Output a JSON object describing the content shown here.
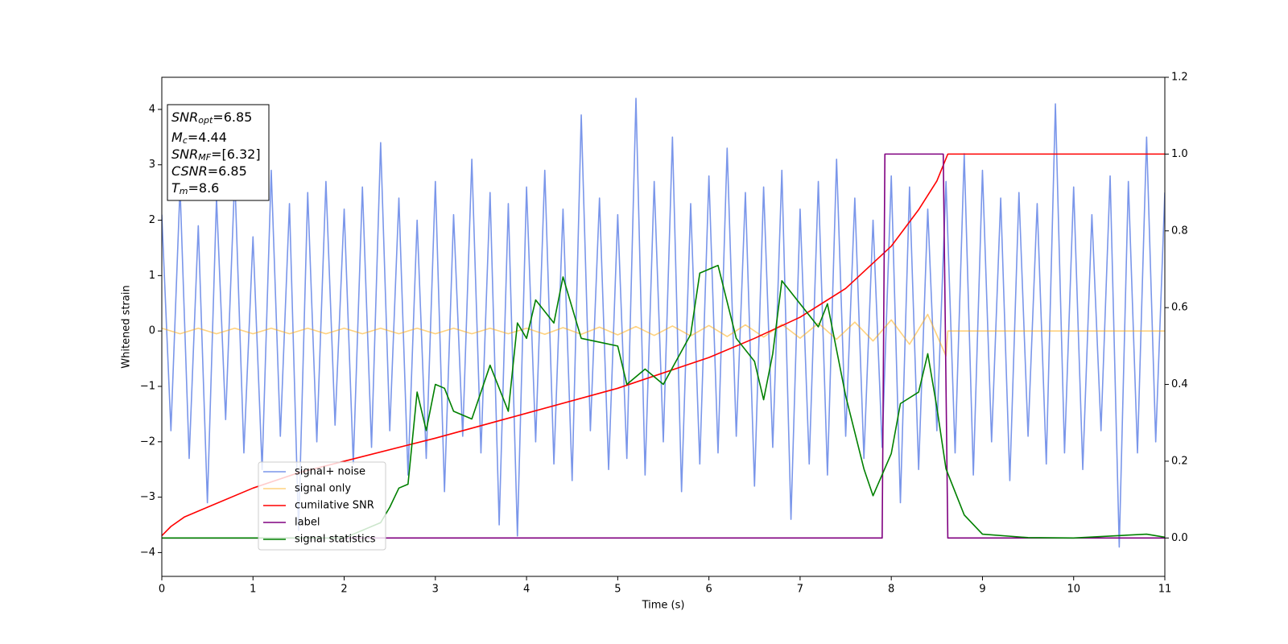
{
  "chart_data": {
    "type": "line",
    "xlabel": "Time (s)",
    "ylabel": "Whitened strain",
    "xlim": [
      0,
      11
    ],
    "ylim": [
      -4.43,
      4.58
    ],
    "y2lim": [
      -0.1,
      1.2
    ],
    "xticks": [
      0,
      1,
      2,
      3,
      4,
      5,
      6,
      7,
      8,
      9,
      10,
      11
    ],
    "yticks": [
      -4,
      -3,
      -2,
      -1,
      0,
      1,
      2,
      3,
      4
    ],
    "y2ticks": [
      {
        "value": 0,
        "label": "0.0"
      },
      0.2,
      0.4,
      0.6,
      0.8,
      {
        "value": 1,
        "label": "1.0"
      },
      1.2
    ],
    "annotation": [
      {
        "base": "SNR",
        "sub": "opt",
        "text": "=6.85"
      },
      {
        "base": "M",
        "sub": "c",
        "text": "=4.44"
      },
      {
        "base": "SNR",
        "sub": "MF",
        "text": "=[6.32]"
      },
      {
        "base": "CSNR",
        "text": "=6.85"
      },
      {
        "base": "T",
        "sub": "m",
        "text": "=8.6"
      }
    ],
    "series": [
      {
        "name": "signal+ noise",
        "color": "#4169e1",
        "alpha": 0.7,
        "x": [
          0,
          0.1,
          0.2,
          0.3,
          0.4,
          0.5,
          0.6,
          0.7,
          0.8,
          0.9,
          1,
          1.1,
          1.2,
          1.3,
          1.4,
          1.5,
          1.6,
          1.7,
          1.8,
          1.9,
          2,
          2.1,
          2.2,
          2.3,
          2.4,
          2.5,
          2.6,
          2.7,
          2.8,
          2.9,
          3,
          3.1,
          3.2,
          3.3,
          3.4,
          3.5,
          3.6,
          3.7,
          3.8,
          3.9,
          4,
          4.1,
          4.2,
          4.3,
          4.4,
          4.5,
          4.6,
          4.7,
          4.8,
          4.9,
          5,
          5.1,
          5.2,
          5.3,
          5.4,
          5.5,
          5.6,
          5.7,
          5.8,
          5.9,
          6,
          6.1,
          6.2,
          6.3,
          6.4,
          6.5,
          6.6,
          6.7,
          6.8,
          6.9,
          7,
          7.1,
          7.2,
          7.3,
          7.4,
          7.5,
          7.6,
          7.7,
          7.8,
          7.9,
          8,
          8.1,
          8.2,
          8.3,
          8.4,
          8.5,
          8.6,
          8.7,
          8.8,
          8.9,
          9,
          9.1,
          9.2,
          9.3,
          9.4,
          9.5,
          9.6,
          9.7,
          9.8,
          9.9,
          10,
          10.1,
          10.2,
          10.3,
          10.4,
          10.5,
          10.6,
          10.7,
          10.8,
          10.9,
          11
        ],
        "values": [
          2.1,
          -1.8,
          2.6,
          -2.3,
          1.9,
          -3.1,
          2.4,
          -1.6,
          2.8,
          -2.2,
          1.7,
          -2.5,
          2.9,
          -1.9,
          2.3,
          -3.6,
          2.5,
          -2.0,
          2.7,
          -1.7,
          2.2,
          -2.4,
          2.6,
          -2.1,
          3.4,
          -1.8,
          2.4,
          -2.6,
          2.0,
          -2.3,
          2.7,
          -2.9,
          2.1,
          -1.9,
          3.1,
          -2.2,
          2.5,
          -3.5,
          2.3,
          -3.7,
          2.6,
          -2.0,
          2.9,
          -2.4,
          2.2,
          -2.7,
          3.9,
          -1.8,
          2.4,
          -2.5,
          2.1,
          -2.3,
          4.2,
          -2.6,
          2.7,
          -2.0,
          3.5,
          -2.9,
          2.3,
          -2.4,
          2.8,
          -2.2,
          3.3,
          -1.9,
          2.5,
          -2.8,
          2.6,
          -2.1,
          2.9,
          -3.4,
          2.2,
          -2.4,
          2.7,
          -2.6,
          3.1,
          -1.9,
          2.4,
          -2.3,
          2.0,
          -2.1,
          2.8,
          -3.1,
          2.6,
          -2.5,
          2.2,
          -1.8,
          2.7,
          -2.2,
          3.2,
          -2.6,
          2.9,
          -2.0,
          2.4,
          -2.7,
          2.5,
          -1.9,
          2.3,
          -2.4,
          4.1,
          -2.2,
          2.6,
          -2.5,
          2.1,
          -1.8,
          2.8,
          -3.9,
          2.7,
          -2.2,
          3.5,
          -2.0,
          2.5
        ]
      },
      {
        "name": "signal only",
        "color": "#ffa500",
        "alpha": 0.5,
        "x": [
          0,
          0.2,
          0.4,
          0.6,
          0.8,
          1,
          1.2,
          1.4,
          1.6,
          1.8,
          2,
          2.2,
          2.4,
          2.6,
          2.8,
          3,
          3.2,
          3.4,
          3.6,
          3.8,
          4,
          4.2,
          4.4,
          4.6,
          4.8,
          5,
          5.2,
          5.4,
          5.6,
          5.8,
          6,
          6.2,
          6.4,
          6.6,
          6.8,
          7,
          7.2,
          7.4,
          7.6,
          7.8,
          8,
          8.2,
          8.4,
          8.6,
          8.62,
          11
        ],
        "values": [
          0.05,
          -0.05,
          0.05,
          -0.05,
          0.05,
          -0.05,
          0.05,
          -0.05,
          0.05,
          -0.05,
          0.05,
          -0.05,
          0.05,
          -0.05,
          0.05,
          -0.05,
          0.05,
          -0.05,
          0.05,
          -0.05,
          0.05,
          -0.06,
          0.06,
          -0.06,
          0.07,
          -0.07,
          0.08,
          -0.08,
          0.09,
          -0.09,
          0.1,
          -0.1,
          0.11,
          -0.11,
          0.12,
          -0.13,
          0.14,
          -0.15,
          0.16,
          -0.18,
          0.2,
          -0.24,
          0.3,
          -0.45,
          0,
          0
        ]
      },
      {
        "name": "cumilative SNR",
        "color": "#ff0000",
        "axis": "y2",
        "x": [
          0,
          0.1,
          0.25,
          0.5,
          1,
          1.5,
          2,
          3,
          4,
          5,
          6,
          6.5,
          7,
          7.5,
          8,
          8.3,
          8.5,
          8.62,
          11
        ],
        "values": [
          0.006,
          0.03,
          0.055,
          0.08,
          0.13,
          0.17,
          0.2,
          0.26,
          0.325,
          0.39,
          0.47,
          0.52,
          0.575,
          0.65,
          0.76,
          0.855,
          0.93,
          1.0,
          1.0
        ]
      },
      {
        "name": "label",
        "color": "#800080",
        "axis": "y2",
        "x": [
          0,
          7.9,
          7.93,
          8.57,
          8.62,
          11
        ],
        "values": [
          0,
          0,
          1,
          1,
          0,
          0
        ]
      },
      {
        "name": "signal statistics",
        "color": "#008000",
        "axis": "y2",
        "x": [
          0,
          2,
          2.4,
          2.5,
          2.6,
          2.7,
          2.8,
          2.9,
          3,
          3.1,
          3.2,
          3.4,
          3.6,
          3.8,
          3.9,
          4,
          4.1,
          4.3,
          4.4,
          4.6,
          4.8,
          5,
          5.1,
          5.3,
          5.5,
          5.8,
          5.9,
          6.1,
          6.3,
          6.5,
          6.6,
          6.7,
          6.8,
          7,
          7.2,
          7.3,
          7.5,
          7.7,
          7.8,
          8,
          8.1,
          8.3,
          8.4,
          8.5,
          8.6,
          8.8,
          9,
          9.5,
          10,
          10.8,
          11
        ],
        "values": [
          0,
          0,
          0.04,
          0.08,
          0.13,
          0.14,
          0.38,
          0.28,
          0.4,
          0.39,
          0.33,
          0.31,
          0.45,
          0.33,
          0.56,
          0.52,
          0.62,
          0.56,
          0.68,
          0.52,
          0.51,
          0.5,
          0.4,
          0.44,
          0.4,
          0.53,
          0.69,
          0.71,
          0.52,
          0.46,
          0.36,
          0.48,
          0.67,
          0.61,
          0.55,
          0.61,
          0.37,
          0.18,
          0.11,
          0.22,
          0.35,
          0.38,
          0.48,
          0.34,
          0.18,
          0.06,
          0.01,
          0.001,
          0,
          0.01,
          0.002
        ]
      }
    ]
  }
}
